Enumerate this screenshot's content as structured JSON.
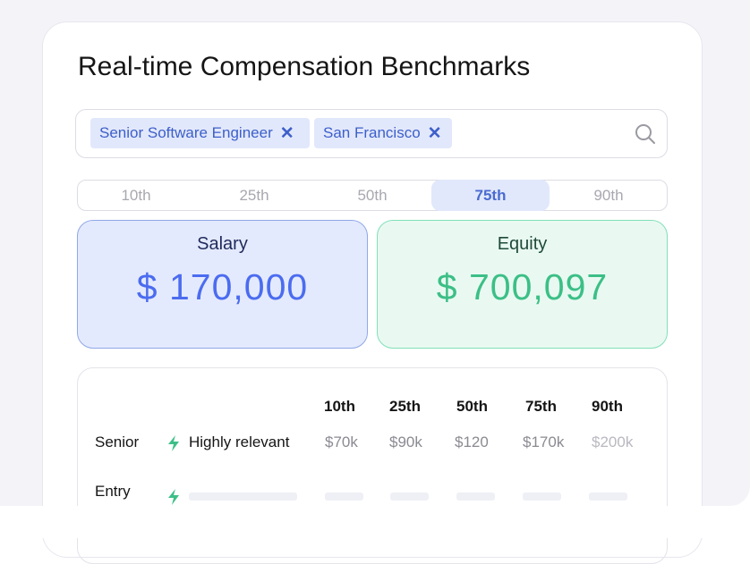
{
  "header": {
    "title": "Real-time Compensation Benchmarks"
  },
  "search": {
    "tags": [
      "Senior Software Engineer",
      "San Francisco"
    ]
  },
  "tabs": [
    "10th",
    "25th",
    "50th",
    "75th",
    "90th"
  ],
  "cards": [
    {
      "label": "Salary",
      "currency": "$",
      "amount": "170,000"
    },
    {
      "label": "Equity",
      "currency": "$",
      "amount": "700,097"
    }
  ],
  "table": {
    "columns": [
      "10th",
      "25th",
      "50th",
      "75th",
      "90th"
    ],
    "rows": [
      {
        "label": "Senior",
        "tag": "Highly relevant",
        "values": [
          "$70k",
          "$90k",
          "$120",
          "$170k",
          "$200k"
        ]
      },
      {
        "label": "Entry"
      }
    ]
  }
}
